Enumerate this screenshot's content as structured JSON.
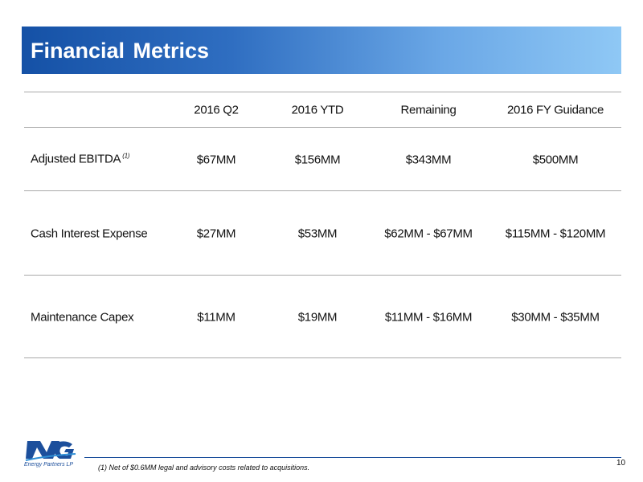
{
  "title": "Financial Metrics",
  "table": {
    "headers": [
      "2016 Q2",
      "2016 YTD",
      "Remaining",
      "2016 FY Guidance"
    ],
    "rows": [
      {
        "label": "Adjusted EBITDA",
        "label_sup": "(1)",
        "values": [
          "$67MM",
          "$156MM",
          "$343MM",
          "$500MM"
        ]
      },
      {
        "label": "Cash Interest Expense",
        "values": [
          "$27MM",
          "$53MM",
          "$62MM - $67MM",
          "$115MM - $120MM"
        ]
      },
      {
        "label": "Maintenance Capex",
        "values": [
          "$11MM",
          "$19MM",
          "$11MM - $16MM",
          "$30MM - $35MM"
        ]
      }
    ]
  },
  "footer": {
    "footnote": "(1) Net of $0.6MM legal and advisory costs related to acquisitions.",
    "page_number": "10",
    "logo_text": "NGL",
    "logo_subtext": "Energy Partners LP"
  },
  "colors": {
    "title_gradient_start": "#1551a6",
    "title_gradient_end": "#8fc8f5",
    "brand_blue": "#1c4f9c",
    "rule_gray": "#a9a9a9"
  }
}
